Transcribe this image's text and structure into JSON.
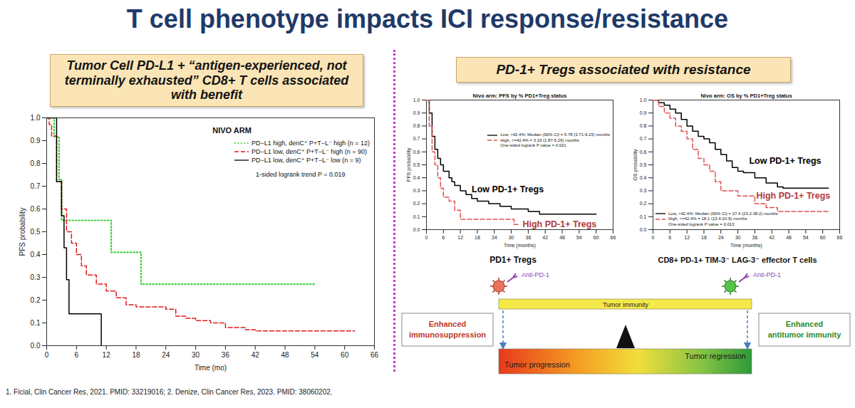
{
  "title": "T cell phenotype impacts ICI response/resistance",
  "left_panel": {
    "heading": "Tumor Cell PD-L1 + “antigen-experienced, not terminally exhausted” CD8+ T cells associated with benefit"
  },
  "right_panel": {
    "heading": "PD-1+ Tregs associated with resistance",
    "captions": [
      "PD1+ Tregs",
      "CD8+ PD-1+ TIM-3⁻ LAG-3⁻ effector T cells"
    ]
  },
  "chart_data": [
    {
      "type": "step",
      "title": "NIVO ARM",
      "xlabel": "Time (mo)",
      "ylabel": "PFS probability",
      "xlim": [
        0,
        66
      ],
      "xticks": [
        0,
        6,
        12,
        18,
        24,
        30,
        36,
        42,
        48,
        54,
        60,
        66
      ],
      "ylim": [
        0,
        1
      ],
      "yticks": [
        {
          "value": 0,
          "label": "0.0"
        },
        {
          "value": 0.1,
          "label": "0.1"
        },
        {
          "value": 0.2,
          "label": "0.2"
        },
        {
          "value": 0.3,
          "label": "0.3"
        },
        {
          "value": 0.4,
          "label": "0.4"
        },
        {
          "value": 0.5,
          "label": "0.5"
        },
        {
          "value": 0.6,
          "label": "0.6"
        },
        {
          "value": 0.7,
          "label": "0.7"
        },
        {
          "value": 0.8,
          "label": "0.8"
        },
        {
          "value": 0.9,
          "label": "0.9"
        },
        {
          "value": 1,
          "label": "1.0"
        }
      ],
      "legend": "upper right",
      "series": [
        {
          "name": "PD−L1 high, denC⁺ P+T−L⁻ high (n = 12)",
          "color": "#3ccf3c",
          "line_style": "dotted",
          "x": [
            0,
            1.5,
            2.5,
            3,
            13,
            19,
            54
          ],
          "values": [
            1,
            0.917,
            0.73,
            0.55,
            0.41,
            0.27,
            0.27
          ]
        },
        {
          "name": "PD−L1 low, denC⁺ P+T−L⁻ high (n = 90)",
          "color": "#e31a1c",
          "line_style": "dashed",
          "x": [
            0,
            0.5,
            1,
            2,
            3,
            4,
            5,
            6,
            7,
            8,
            10,
            12,
            14,
            16,
            18,
            24,
            26,
            28,
            30,
            33,
            36,
            40,
            42,
            62
          ],
          "values": [
            1,
            0.97,
            0.92,
            0.72,
            0.6,
            0.5,
            0.45,
            0.4,
            0.35,
            0.31,
            0.27,
            0.24,
            0.21,
            0.18,
            0.17,
            0.16,
            0.13,
            0.12,
            0.11,
            0.1,
            0.08,
            0.07,
            0.065,
            0.065
          ]
        },
        {
          "name": "PD−L1 low, denC⁺ P+T−L⁻ low (n = 9)",
          "color": "#000000",
          "line_style": "solid",
          "x": [
            0,
            2,
            3,
            3.5,
            4,
            4.5,
            11,
            11
          ],
          "values": [
            1,
            0.72,
            0.57,
            0.43,
            0.29,
            0.14,
            0.14,
            0
          ]
        }
      ],
      "annotations": [
        {
          "text": "1-sided logrank trend P = 0.019"
        }
      ]
    },
    {
      "type": "step",
      "title": "Nivo arm: PFS by % PD1+Treg status",
      "xlabel": "Time (months)",
      "ylabel": "PFS probability",
      "xlim": [
        0,
        66
      ],
      "xticks": [
        0,
        6,
        12,
        18,
        24,
        30,
        36,
        42,
        48,
        54,
        60,
        66
      ],
      "ylim": [
        0,
        1
      ],
      "yticks": [
        {
          "value": 0,
          "label": "0.0"
        },
        {
          "value": 0.1,
          "label": "0.1"
        },
        {
          "value": 0.2,
          "label": "0.2"
        },
        {
          "value": 0.3,
          "label": "0.3"
        },
        {
          "value": 0.4,
          "label": "0.4"
        },
        {
          "value": 0.5,
          "label": "0.5"
        },
        {
          "value": 0.6,
          "label": "0.6"
        },
        {
          "value": 0.7,
          "label": "0.7"
        },
        {
          "value": 0.8,
          "label": "0.8"
        },
        {
          "value": 0.9,
          "label": "0.9"
        },
        {
          "value": 1,
          "label": "1.0"
        }
      ],
      "legend": "right",
      "series": [
        {
          "name": "Low, <42.4%: Median (90% CI) = 5.78 (3.71-9.23) months",
          "color": "#000000",
          "line_style": "solid",
          "x": [
            0,
            1,
            2,
            3,
            4,
            5,
            6,
            8,
            9,
            10,
            12,
            14,
            16,
            18,
            22,
            26,
            30,
            36,
            40,
            60
          ],
          "values": [
            1,
            0.9,
            0.72,
            0.62,
            0.55,
            0.5,
            0.45,
            0.4,
            0.37,
            0.34,
            0.3,
            0.27,
            0.24,
            0.22,
            0.2,
            0.18,
            0.16,
            0.14,
            0.12,
            0.12
          ]
        },
        {
          "name": "High, >=42.4% = 3.19 (1.87-5.26) months",
          "color": "#e05050",
          "line_style": "dashed",
          "x": [
            0,
            1,
            2,
            3,
            4,
            5,
            6,
            8,
            10,
            12,
            30,
            31,
            33
          ],
          "values": [
            1,
            0.8,
            0.6,
            0.5,
            0.4,
            0.32,
            0.25,
            0.22,
            0.15,
            0.08,
            0.08,
            0.04,
            0.04
          ]
        }
      ],
      "annotations": [
        {
          "text": "One-sided logrank P value = 0.021"
        },
        {
          "text": "Low PD-1+ Tregs",
          "x": 16,
          "y": 0.31,
          "color": "#000000"
        },
        {
          "text": "High PD-1+ Tregs",
          "x": 34,
          "y": 0.04,
          "color": "#b5383a"
        }
      ]
    },
    {
      "type": "step",
      "title": "Nivo arm: OS by % PD1+Treg status",
      "xlabel": "Time (months)",
      "ylabel": "OS probability",
      "xlim": [
        0,
        66
      ],
      "xticks": [
        0,
        6,
        12,
        18,
        24,
        30,
        36,
        42,
        48,
        54,
        60,
        66
      ],
      "ylim": [
        0,
        1
      ],
      "yticks": [
        {
          "value": 0,
          "label": "0.0"
        },
        {
          "value": 0.1,
          "label": "0.1"
        },
        {
          "value": 0.2,
          "label": "0.2"
        },
        {
          "value": 0.3,
          "label": "0.3"
        },
        {
          "value": 0.4,
          "label": "0.4"
        },
        {
          "value": 0.5,
          "label": "0.5"
        },
        {
          "value": 0.6,
          "label": "0.6"
        },
        {
          "value": 0.7,
          "label": "0.7"
        },
        {
          "value": 0.8,
          "label": "0.8"
        },
        {
          "value": 0.9,
          "label": "0.9"
        },
        {
          "value": 1,
          "label": "1.0"
        }
      ],
      "legend": "lower left",
      "series": [
        {
          "name": "Low, <42.4%: Median (90% CI) = 27.4 (23.2-38.2) months",
          "color": "#000000",
          "line_style": "solid",
          "x": [
            0,
            2,
            4,
            6,
            8,
            10,
            12,
            14,
            16,
            18,
            20,
            22,
            24,
            26,
            28,
            30,
            32,
            36,
            40,
            44,
            46,
            62
          ],
          "values": [
            1,
            0.98,
            0.96,
            0.93,
            0.9,
            0.85,
            0.8,
            0.76,
            0.72,
            0.7,
            0.67,
            0.62,
            0.58,
            0.53,
            0.48,
            0.45,
            0.44,
            0.4,
            0.36,
            0.33,
            0.32,
            0.32
          ]
        },
        {
          "name": "High, >=42.4% = 18.1 (13.4-20.9) months",
          "color": "#e05050",
          "line_style": "dashed",
          "x": [
            0,
            2,
            4,
            6,
            8,
            10,
            12,
            14,
            16,
            18,
            20,
            22,
            24,
            30,
            36,
            40,
            44,
            62
          ],
          "values": [
            1,
            0.95,
            0.9,
            0.86,
            0.8,
            0.76,
            0.7,
            0.62,
            0.55,
            0.5,
            0.45,
            0.37,
            0.3,
            0.26,
            0.2,
            0.17,
            0.14,
            0.14
          ]
        }
      ],
      "annotations": [
        {
          "text": "One-sided logrank P value = 0.013"
        },
        {
          "text": "Low PD-1+ Tregs",
          "x": 34,
          "y": 0.53,
          "color": "#000000"
        },
        {
          "text": "High PD-1+ Tregs",
          "x": 36.5,
          "y": 0.26,
          "color": "#b5383a"
        }
      ]
    }
  ],
  "diagram": {
    "drug_labels": [
      "Anti-PD-1",
      "Anti-PD-1"
    ],
    "left_box": "Enhanced immunosuppression",
    "right_box": "Enhanced antitumor immunity",
    "balance_bar": "Tumor immunity",
    "outcome_left": "Tumor progression",
    "outcome_right": "Tumor regression"
  },
  "footnote": "1. Ficial, Clin Cancer Res, 2021. PMID: 33219016; 2. Denize, Clin Cancer Res, 2023. PMID: 38060202."
}
